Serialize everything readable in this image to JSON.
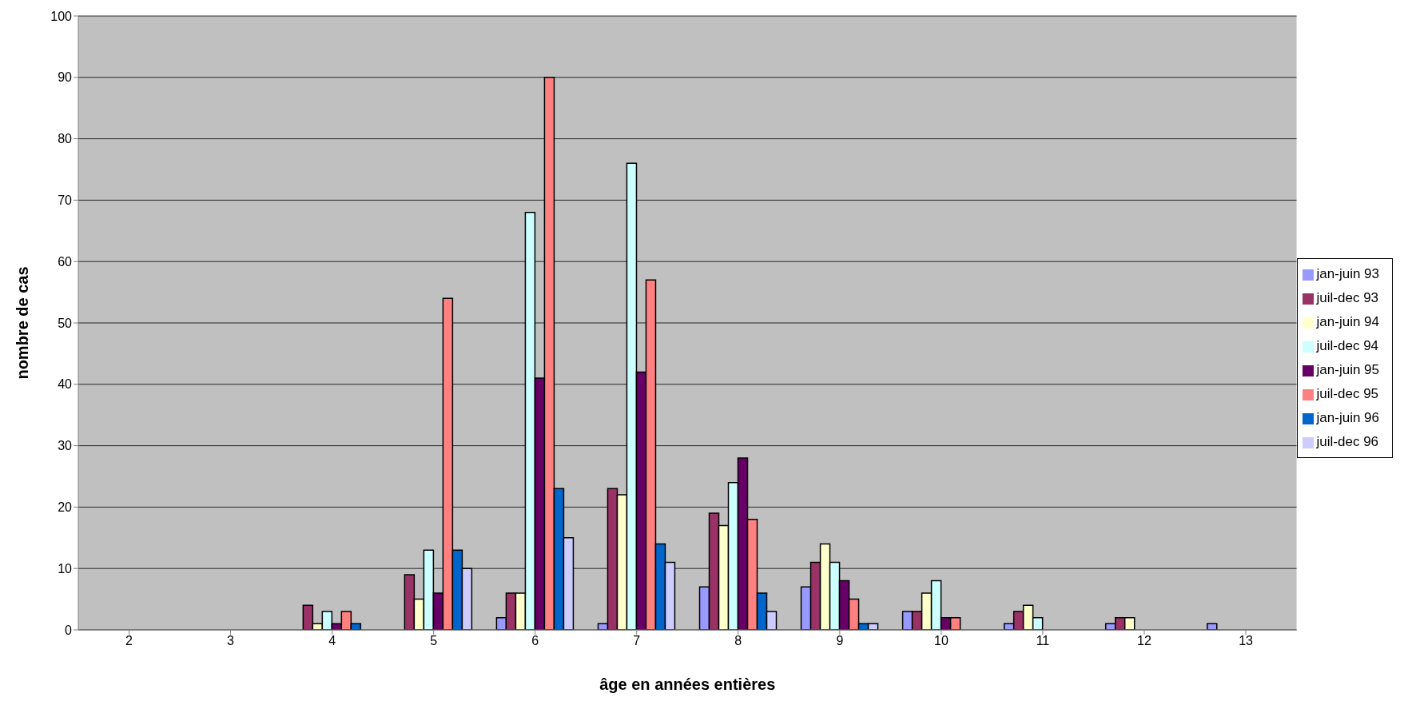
{
  "chart_data": {
    "type": "bar",
    "xlabel": "âge en années entières",
    "ylabel": "nombre de cas",
    "categories": [
      "2",
      "3",
      "4",
      "5",
      "6",
      "7",
      "8",
      "9",
      "10",
      "11",
      "12",
      "13"
    ],
    "series": [
      {
        "name": "jan-juin 93",
        "color": "#9999ff",
        "values": [
          null,
          null,
          null,
          null,
          2,
          1,
          7,
          7,
          3,
          1,
          1,
          1
        ]
      },
      {
        "name": "juil-dec 93",
        "color": "#993366",
        "values": [
          null,
          null,
          4,
          9,
          6,
          23,
          19,
          11,
          3,
          3,
          2,
          null
        ]
      },
      {
        "name": "jan-juin 94",
        "color": "#ffffcc",
        "values": [
          null,
          null,
          1,
          5,
          6,
          22,
          17,
          14,
          6,
          4,
          2,
          null
        ]
      },
      {
        "name": "juil-dec 94",
        "color": "#ccffff",
        "values": [
          null,
          null,
          3,
          13,
          68,
          76,
          24,
          11,
          8,
          2,
          null,
          null
        ]
      },
      {
        "name": "jan-juin 95",
        "color": "#660066",
        "values": [
          null,
          null,
          1,
          6,
          41,
          42,
          28,
          8,
          2,
          null,
          null,
          null
        ]
      },
      {
        "name": "juil-dec 95",
        "color": "#ff8080",
        "values": [
          null,
          null,
          3,
          54,
          90,
          57,
          18,
          5,
          2,
          null,
          null,
          null
        ]
      },
      {
        "name": "jan-juin 96",
        "color": "#0066cc",
        "values": [
          null,
          null,
          1,
          13,
          23,
          14,
          6,
          1,
          null,
          null,
          null,
          null
        ]
      },
      {
        "name": "juil-dec 96",
        "color": "#ccccff",
        "values": [
          null,
          null,
          null,
          10,
          15,
          11,
          3,
          1,
          null,
          null,
          null,
          null
        ]
      }
    ],
    "ylim": [
      0,
      100
    ],
    "yticks": [
      0,
      10,
      20,
      30,
      40,
      50,
      60,
      70,
      80,
      90,
      100
    ],
    "grid": "y",
    "legend": "right"
  }
}
